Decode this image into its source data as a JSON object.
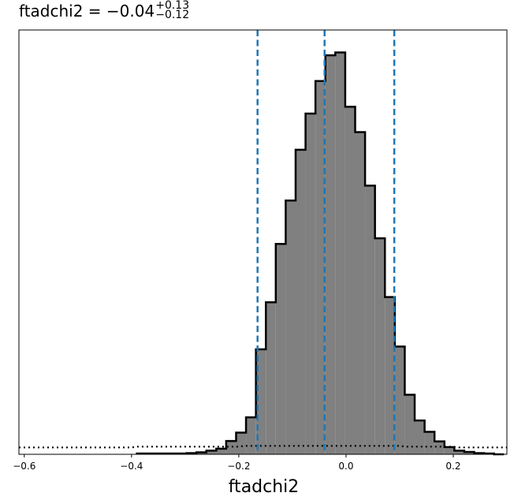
{
  "chart_data": {
    "type": "histogram",
    "title": {
      "param": "ftadchi2",
      "median": "−0.04",
      "plus": "+0.13",
      "minus": "−0.12"
    },
    "xlabel": "ftadchi2",
    "xlim": [
      -0.61,
      0.3
    ],
    "ylim": [
      0,
      1.0
    ],
    "y_axis_labels": false,
    "xticks": [
      -0.6,
      -0.4,
      -0.2,
      0.0,
      0.2
    ],
    "xtick_labels": [
      "−0.6",
      "−0.4",
      "−0.2",
      "0.0",
      "0.2"
    ],
    "bin_width": 0.0185,
    "posterior": {
      "fill_color": "#808080",
      "edge_color": "#000000",
      "bins": [
        {
          "x0": -0.39,
          "value": 0.002
        },
        {
          "x0": -0.3715,
          "value": 0.002
        },
        {
          "x0": -0.353,
          "value": 0.002
        },
        {
          "x0": -0.3345,
          "value": 0.002
        },
        {
          "x0": -0.316,
          "value": 0.002
        },
        {
          "x0": -0.2975,
          "value": 0.003
        },
        {
          "x0": -0.279,
          "value": 0.005
        },
        {
          "x0": -0.2605,
          "value": 0.009
        },
        {
          "x0": -0.242,
          "value": 0.014
        },
        {
          "x0": -0.2235,
          "value": 0.033
        },
        {
          "x0": -0.205,
          "value": 0.054
        },
        {
          "x0": -0.1865,
          "value": 0.092
        },
        {
          "x0": -0.168,
          "value": 0.261
        },
        {
          "x0": -0.1495,
          "value": 0.378
        },
        {
          "x0": -0.131,
          "value": 0.523
        },
        {
          "x0": -0.1125,
          "value": 0.631
        },
        {
          "x0": -0.094,
          "value": 0.757
        },
        {
          "x0": -0.0755,
          "value": 0.847
        },
        {
          "x0": -0.057,
          "value": 0.928
        },
        {
          "x0": -0.0385,
          "value": 0.992
        },
        {
          "x0": -0.02,
          "value": 0.999
        },
        {
          "x0": -0.0015,
          "value": 0.864
        },
        {
          "x0": 0.017,
          "value": 0.801
        },
        {
          "x0": 0.0355,
          "value": 0.668
        },
        {
          "x0": 0.054,
          "value": 0.537
        },
        {
          "x0": 0.0725,
          "value": 0.391
        },
        {
          "x0": 0.091,
          "value": 0.268
        },
        {
          "x0": 0.1095,
          "value": 0.148
        },
        {
          "x0": 0.128,
          "value": 0.084
        },
        {
          "x0": 0.1465,
          "value": 0.056
        },
        {
          "x0": 0.165,
          "value": 0.032
        },
        {
          "x0": 0.1835,
          "value": 0.018
        },
        {
          "x0": 0.202,
          "value": 0.009
        },
        {
          "x0": 0.2205,
          "value": 0.006
        },
        {
          "x0": 0.239,
          "value": 0.003
        },
        {
          "x0": 0.2575,
          "value": 0.002
        },
        {
          "x0": 0.276,
          "value": 0.0
        }
      ]
    },
    "prior": {
      "line_style": "dotted",
      "color": "#000000",
      "points": [
        {
          "x": -0.61,
          "y": 0.017
        },
        {
          "x": -0.4,
          "y": 0.017
        },
        {
          "x": -0.39,
          "y": 0.019
        },
        {
          "x": -0.2,
          "y": 0.019
        },
        {
          "x": -0.19,
          "y": 0.021
        },
        {
          "x": 0.1,
          "y": 0.021
        },
        {
          "x": 0.11,
          "y": 0.019
        },
        {
          "x": 0.2,
          "y": 0.019
        },
        {
          "x": 0.21,
          "y": 0.017
        },
        {
          "x": 0.3,
          "y": 0.017
        }
      ]
    },
    "quantile_lines": {
      "color": "#1f77b4",
      "line_style": "dashed",
      "values": [
        -0.165,
        -0.04,
        0.09
      ]
    }
  }
}
